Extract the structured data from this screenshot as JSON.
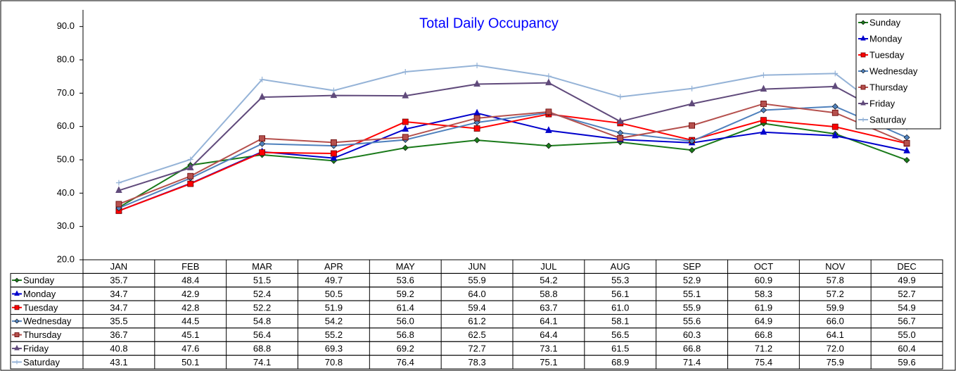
{
  "chart_data": {
    "type": "line",
    "title": "Total Daily Occupancy",
    "categories": [
      "JAN",
      "FEB",
      "MAR",
      "APR",
      "MAY",
      "JUN",
      "JUL",
      "AUG",
      "SEP",
      "OCT",
      "NOV",
      "DEC"
    ],
    "series": [
      {
        "name": "Sunday",
        "color": "#1a7a1a",
        "marker": "diamond",
        "values": [
          35.7,
          48.4,
          51.5,
          49.7,
          53.6,
          55.9,
          54.2,
          55.3,
          52.9,
          60.9,
          57.8,
          49.9
        ],
        "value_labels": [
          "35.7",
          "48.4",
          "51.5",
          "49.7",
          "53.6",
          "55.9",
          "54.2",
          "55.3",
          "52.9",
          "60.9",
          "57.8",
          "49.9"
        ]
      },
      {
        "name": "Monday",
        "color": "#0000cc",
        "marker": "triangle",
        "values": [
          34.7,
          42.9,
          52.4,
          50.5,
          59.2,
          64,
          58.8,
          56.1,
          55.1,
          58.3,
          57.2,
          52.7
        ],
        "value_labels": [
          "34.7",
          "42.9",
          "52.4",
          "50.5",
          "59.2",
          "64.0",
          "58.8",
          "56.1",
          "55.1",
          "58.3",
          "57.2",
          "52.7"
        ]
      },
      {
        "name": "Tuesday",
        "color": "#ff0000",
        "marker": "square",
        "values": [
          34.7,
          42.8,
          52.2,
          51.9,
          61.4,
          59.4,
          63.7,
          61,
          55.9,
          61.9,
          59.9,
          54.9
        ],
        "value_labels": [
          "34.7",
          "42.8",
          "52.2",
          "51.9",
          "61.4",
          "59.4",
          "63.7",
          "61.0",
          "55.9",
          "61.9",
          "59.9",
          "54.9"
        ]
      },
      {
        "name": "Wednesday",
        "color": "#4f81bd",
        "marker": "diamond",
        "values": [
          35.5,
          44.5,
          54.8,
          54.2,
          56,
          61.2,
          64.1,
          58.1,
          55.6,
          64.9,
          66,
          56.7
        ],
        "value_labels": [
          "35.5",
          "44.5",
          "54.8",
          "54.2",
          "56.0",
          "61.2",
          "64.1",
          "58.1",
          "55.6",
          "64.9",
          "66.0",
          "56.7"
        ]
      },
      {
        "name": "Thursday",
        "color": "#b5504d",
        "marker": "square",
        "values": [
          36.7,
          45.1,
          56.4,
          55.2,
          56.8,
          62.5,
          64.4,
          56.5,
          60.3,
          66.8,
          64.1,
          55
        ],
        "value_labels": [
          "36.7",
          "45.1",
          "56.4",
          "55.2",
          "56.8",
          "62.5",
          "64.4",
          "56.5",
          "60.3",
          "66.8",
          "64.1",
          "55.0"
        ]
      },
      {
        "name": "Friday",
        "color": "#604a7b",
        "marker": "triangle",
        "values": [
          40.8,
          47.6,
          68.8,
          69.3,
          69.2,
          72.7,
          73.1,
          61.5,
          66.8,
          71.2,
          72,
          60.4
        ],
        "value_labels": [
          "40.8",
          "47.6",
          "68.8",
          "69.3",
          "69.2",
          "72.7",
          "73.1",
          "61.5",
          "66.8",
          "71.2",
          "72.0",
          "60.4"
        ]
      },
      {
        "name": "Saturday",
        "color": "#95b3d7",
        "marker": "plus",
        "values": [
          43.1,
          50.1,
          74.1,
          70.8,
          76.4,
          78.3,
          75.1,
          68.9,
          71.4,
          75.4,
          75.9,
          59.6
        ],
        "value_labels": [
          "43.1",
          "50.1",
          "74.1",
          "70.8",
          "76.4",
          "78.3",
          "75.1",
          "68.9",
          "71.4",
          "75.4",
          "75.9",
          "59.6"
        ]
      }
    ],
    "ylim": [
      20,
      95
    ],
    "yticks": [
      {
        "value": 20,
        "label": "20.0"
      },
      {
        "value": 30,
        "label": "30.0"
      },
      {
        "value": 40,
        "label": "40.0"
      },
      {
        "value": 50,
        "label": "50.0"
      },
      {
        "value": 60,
        "label": "60.0"
      },
      {
        "value": 70,
        "label": "70.0"
      },
      {
        "value": 80,
        "label": "80.0"
      },
      {
        "value": 90,
        "label": "90.0"
      }
    ],
    "legend": "top-right",
    "data_table": true
  }
}
